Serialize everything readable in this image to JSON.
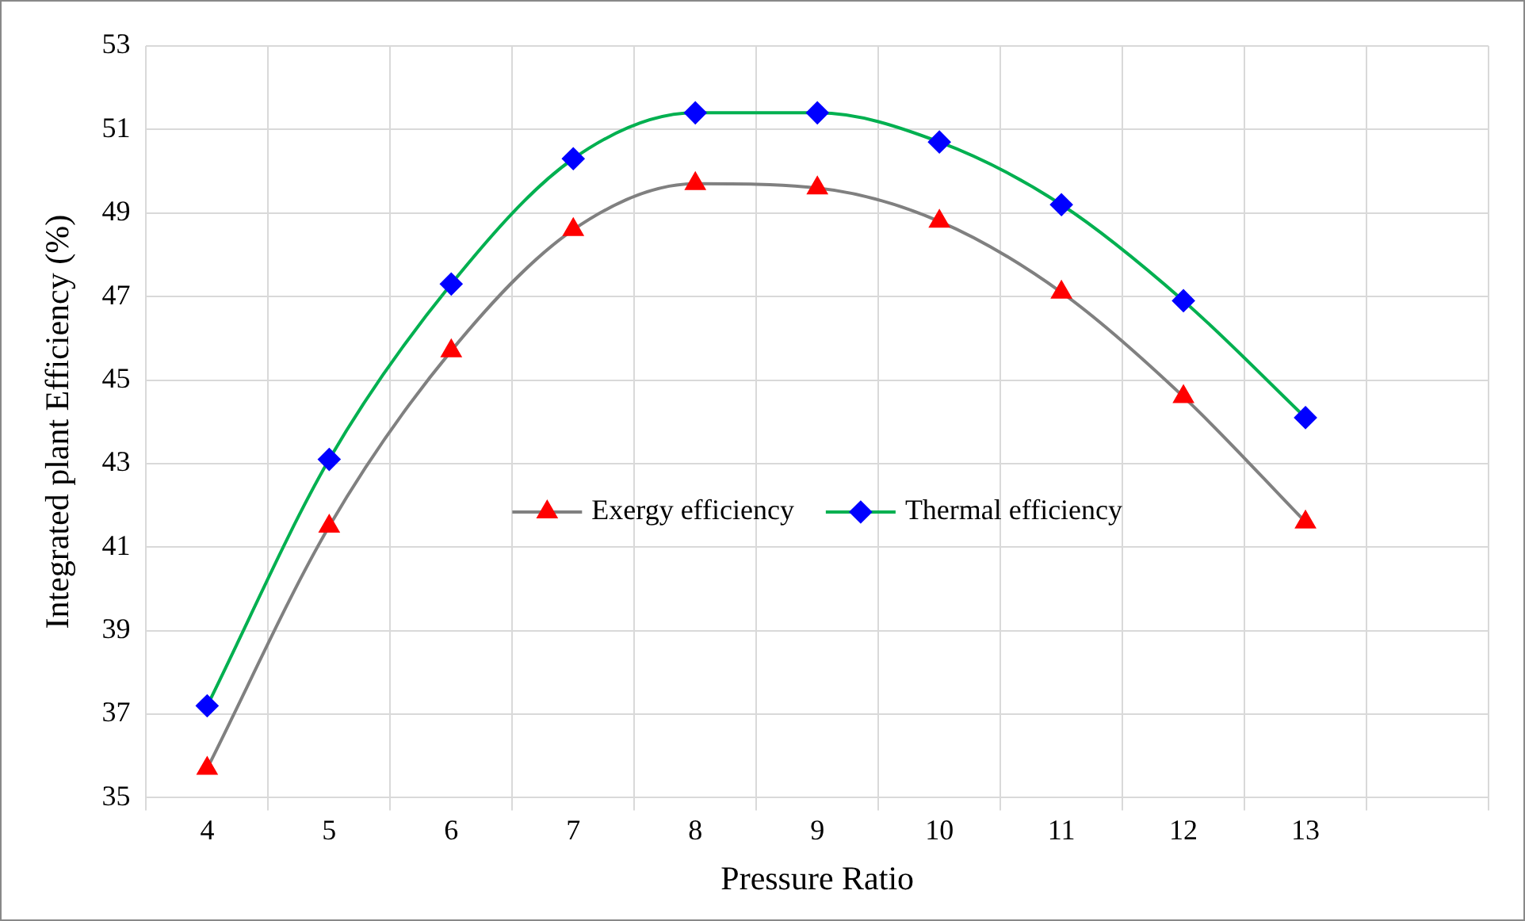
{
  "chart_data": {
    "type": "line",
    "xlabel": "Pressure Ratio",
    "ylabel": "Integrated plant Efficiency (%)",
    "categories": [
      "4",
      "5",
      "6",
      "7",
      "8",
      "9",
      "10",
      "11",
      "12",
      "13",
      null
    ],
    "series": [
      {
        "name": "Exergy efficiency",
        "color": "#808080",
        "colors": [
          "#ff0000",
          "#ff0000",
          "#ff0000",
          "#ff0000",
          "#ff0000",
          "#ff0000",
          "#ff0000",
          "#ff0000",
          "#ff0000",
          "#ff0000",
          null
        ],
        "marker": "triangle",
        "values": [
          35.7,
          41.5,
          45.7,
          48.6,
          49.7,
          49.6,
          48.8,
          47.1,
          44.6,
          41.6,
          null
        ]
      },
      {
        "name": "Thermal efficiency",
        "color": "#00b050",
        "colors": [
          "#0000ff",
          "#0000ff",
          "#0000ff",
          "#0000ff",
          "#0000ff",
          "#0000ff",
          "#0000ff",
          "#0000ff",
          "#0000ff",
          "#0000ff",
          null
        ],
        "marker": "diamond",
        "values": [
          37.2,
          43.1,
          47.3,
          50.3,
          51.4,
          51.4,
          50.7,
          49.2,
          46.9,
          44.1,
          null
        ]
      }
    ],
    "ylim": [
      35,
      53
    ],
    "yticks": [
      35,
      37,
      39,
      41,
      43,
      45,
      47,
      49,
      51,
      53
    ],
    "grid": true,
    "legend": "center"
  }
}
